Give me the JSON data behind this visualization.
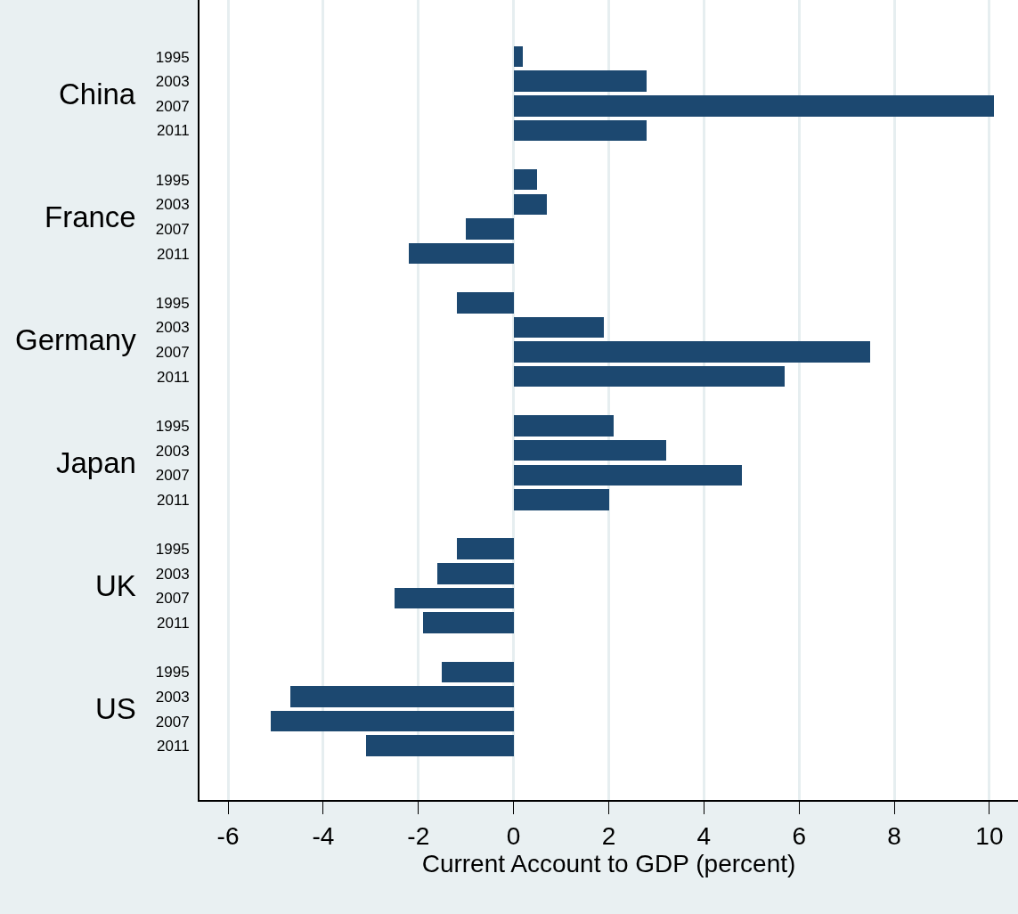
{
  "chart_data": {
    "type": "bar",
    "orientation": "horizontal",
    "xlabel": "Current Account to GDP (percent)",
    "annotations": [
      "China",
      "France",
      "Germany",
      "Japan",
      "UK",
      "US"
    ],
    "categories": [
      "1995",
      "2003",
      "2007",
      "2011",
      null,
      "1995",
      "2003",
      "2007",
      "2011",
      null,
      "1995",
      "2003",
      "2007",
      "2011",
      null,
      "1995",
      "2003",
      "2007",
      "2011",
      null,
      "1995",
      "2003",
      "2007",
      "2011",
      null,
      "1995",
      "2003",
      "2007",
      "2011"
    ],
    "color": "#1c4870",
    "values": [
      0.2,
      2.8,
      10.1,
      2.8,
      null,
      0.5,
      0.7,
      -1.0,
      -2.2,
      null,
      -1.2,
      1.9,
      7.5,
      5.7,
      null,
      2.1,
      3.2,
      4.8,
      2.0,
      null,
      -1.2,
      -1.6,
      -2.5,
      -1.9,
      null,
      -1.5,
      -4.7,
      -5.1,
      -3.1
    ],
    "xlim": [
      -6.6,
      10.6
    ],
    "xticks": [
      -6,
      -4,
      -2,
      0,
      2,
      4,
      6,
      8,
      10
    ],
    "grid": "x"
  }
}
